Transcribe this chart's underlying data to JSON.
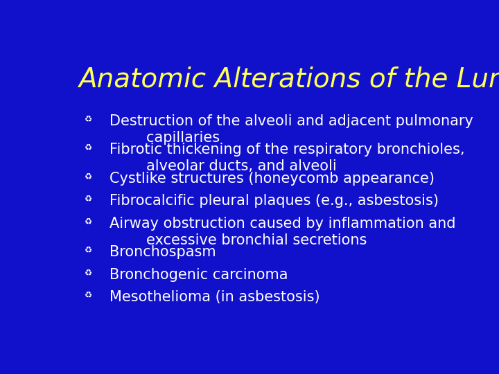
{
  "title": "Anatomic Alterations of the Lungs",
  "title_color": "#FFFF55",
  "title_fontsize": 28,
  "background_color": "#1111CC",
  "bullet_color": "#FFFFFF",
  "bullet_fontsize": 15,
  "bullet_symbol": "↺",
  "bullet_items": [
    "Destruction of the alveoli and adjacent pulmonary\n        capillaries",
    "Fibrotic thickening of the respiratory bronchioles,\n        alveolar ducts, and alveoli",
    "Cystlike structures (honeycomb appearance)",
    "Fibrocalcific pleural plaques (e.g., asbestosis)",
    "Airway obstruction caused by inflammation and\n        excessive bronchial secretions",
    "Bronchospasm",
    "Bronchogenic carcinoma",
    "Mesothelioma (in asbestosis)"
  ],
  "items_nlines": [
    2,
    2,
    1,
    1,
    2,
    1,
    1,
    1
  ]
}
